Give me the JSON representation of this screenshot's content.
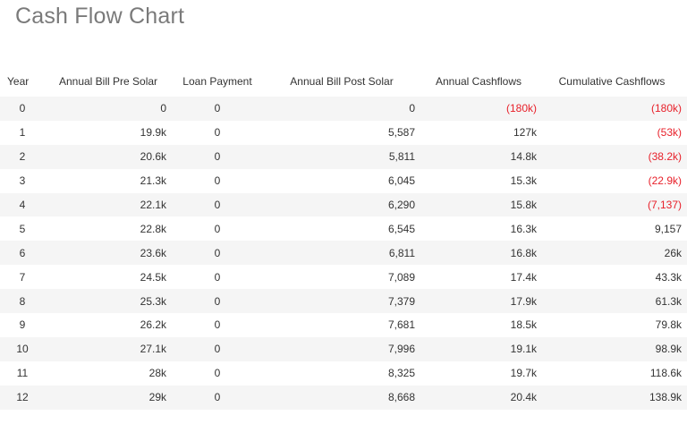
{
  "page": {
    "title": "Cash Flow Chart"
  },
  "colors": {
    "negative": "#e8202a",
    "row_stripe": "#f5f5f5",
    "title": "#7a7a7a"
  },
  "table": {
    "headers": {
      "year": "Year",
      "pre": "Annual Bill Pre Solar",
      "loan": "Loan Payment",
      "post": "Annual Bill Post Solar",
      "annual": "Annual Cashflows",
      "cumulative": "Cumulative Cashflows"
    },
    "rows": [
      {
        "year": "0",
        "pre": "0",
        "loan": "0",
        "post": "0",
        "annual": "(180k)",
        "annual_negative": true,
        "cumulative": "(180k)",
        "cumulative_negative": true
      },
      {
        "year": "1",
        "pre": "19.9k",
        "loan": "0",
        "post": "5,587",
        "annual": "127k",
        "annual_negative": false,
        "cumulative": "(53k)",
        "cumulative_negative": true
      },
      {
        "year": "2",
        "pre": "20.6k",
        "loan": "0",
        "post": "5,811",
        "annual": "14.8k",
        "annual_negative": false,
        "cumulative": "(38.2k)",
        "cumulative_negative": true
      },
      {
        "year": "3",
        "pre": "21.3k",
        "loan": "0",
        "post": "6,045",
        "annual": "15.3k",
        "annual_negative": false,
        "cumulative": "(22.9k)",
        "cumulative_negative": true
      },
      {
        "year": "4",
        "pre": "22.1k",
        "loan": "0",
        "post": "6,290",
        "annual": "15.8k",
        "annual_negative": false,
        "cumulative": "(7,137)",
        "cumulative_negative": true
      },
      {
        "year": "5",
        "pre": "22.8k",
        "loan": "0",
        "post": "6,545",
        "annual": "16.3k",
        "annual_negative": false,
        "cumulative": "9,157",
        "cumulative_negative": false
      },
      {
        "year": "6",
        "pre": "23.6k",
        "loan": "0",
        "post": "6,811",
        "annual": "16.8k",
        "annual_negative": false,
        "cumulative": "26k",
        "cumulative_negative": false
      },
      {
        "year": "7",
        "pre": "24.5k",
        "loan": "0",
        "post": "7,089",
        "annual": "17.4k",
        "annual_negative": false,
        "cumulative": "43.3k",
        "cumulative_negative": false
      },
      {
        "year": "8",
        "pre": "25.3k",
        "loan": "0",
        "post": "7,379",
        "annual": "17.9k",
        "annual_negative": false,
        "cumulative": "61.3k",
        "cumulative_negative": false
      },
      {
        "year": "9",
        "pre": "26.2k",
        "loan": "0",
        "post": "7,681",
        "annual": "18.5k",
        "annual_negative": false,
        "cumulative": "79.8k",
        "cumulative_negative": false
      },
      {
        "year": "10",
        "pre": "27.1k",
        "loan": "0",
        "post": "7,996",
        "annual": "19.1k",
        "annual_negative": false,
        "cumulative": "98.9k",
        "cumulative_negative": false
      },
      {
        "year": "11",
        "pre": "28k",
        "loan": "0",
        "post": "8,325",
        "annual": "19.7k",
        "annual_negative": false,
        "cumulative": "118.6k",
        "cumulative_negative": false
      },
      {
        "year": "12",
        "pre": "29k",
        "loan": "0",
        "post": "8,668",
        "annual": "20.4k",
        "annual_negative": false,
        "cumulative": "138.9k",
        "cumulative_negative": false
      }
    ]
  }
}
